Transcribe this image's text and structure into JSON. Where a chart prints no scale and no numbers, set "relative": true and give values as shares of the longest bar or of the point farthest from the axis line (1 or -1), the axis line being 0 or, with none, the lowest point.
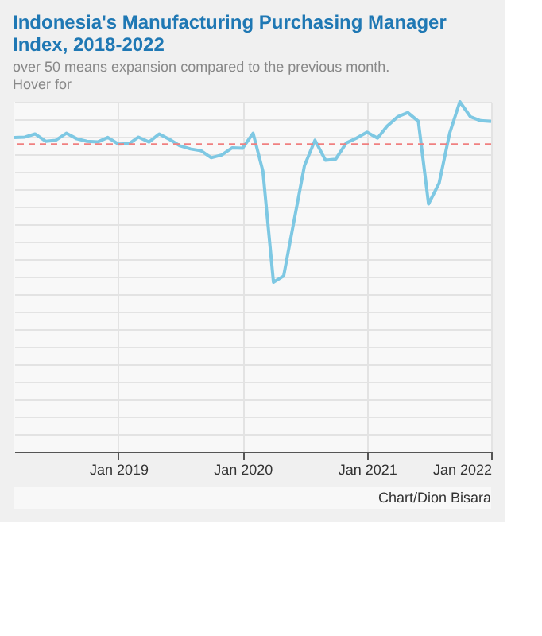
{
  "chart_data": {
    "type": "line",
    "title": "Indonesia's Manufacturing Purchasing Manager Index, 2018-2022",
    "subtitle": "over 50 means expansion compared to the previous month. Hover for",
    "relative": true,
    "x": [
      "2018-03",
      "2018-04",
      "2018-05",
      "2018-06",
      "2018-07",
      "2018-08",
      "2018-09",
      "2018-10",
      "2018-11",
      "2018-12",
      "2019-01",
      "2019-02",
      "2019-03",
      "2019-04",
      "2019-05",
      "2019-06",
      "2019-07",
      "2019-08",
      "2019-09",
      "2019-10",
      "2019-11",
      "2019-12",
      "2020-01",
      "2020-02",
      "2020-03",
      "2020-04",
      "2020-05",
      "2020-06",
      "2020-07",
      "2020-08",
      "2020-09",
      "2020-10",
      "2020-11",
      "2020-12",
      "2021-01",
      "2021-02",
      "2021-03",
      "2021-04",
      "2021-05",
      "2021-06",
      "2021-07",
      "2021-08",
      "2021-09",
      "2021-10",
      "2021-11",
      "2021-12",
      "2022-01"
    ],
    "series": [
      {
        "color": "#7ec8e3",
        "values": [
          0.898,
          0.899,
          0.908,
          0.887,
          0.89,
          0.91,
          0.894,
          0.887,
          0.885,
          0.898,
          0.879,
          0.88,
          0.899,
          0.885,
          0.908,
          0.892,
          0.874,
          0.865,
          0.86,
          0.84,
          0.848,
          0.868,
          0.867,
          0.91,
          0.801,
          0.484,
          0.502,
          0.662,
          0.817,
          0.89,
          0.833,
          0.836,
          0.882,
          0.896,
          0.913,
          0.896,
          0.93,
          0.957,
          0.969,
          0.944,
          0.708,
          0.767,
          0.91,
          1.0,
          0.957,
          0.946,
          0.944
        ]
      }
    ],
    "xlim": [
      "2018-03-01",
      "2022-01-01"
    ],
    "xticks": [
      {
        "value": "2019-01",
        "label": "Jan 2019"
      },
      {
        "value": "2020-01",
        "label": "Jan 2020"
      },
      {
        "value": "2021-01",
        "label": "Jan 2021"
      },
      {
        "value": "2022-01",
        "label": "Jan 2022"
      }
    ],
    "ref_lines": [
      {
        "axis": "y",
        "value": 0.879,
        "color": "#f08080",
        "line_style": "dashed"
      }
    ],
    "annotations": [
      "Chart/Dion Bisara"
    ],
    "grid": true,
    "marker": "none",
    "line_style": "solid"
  }
}
